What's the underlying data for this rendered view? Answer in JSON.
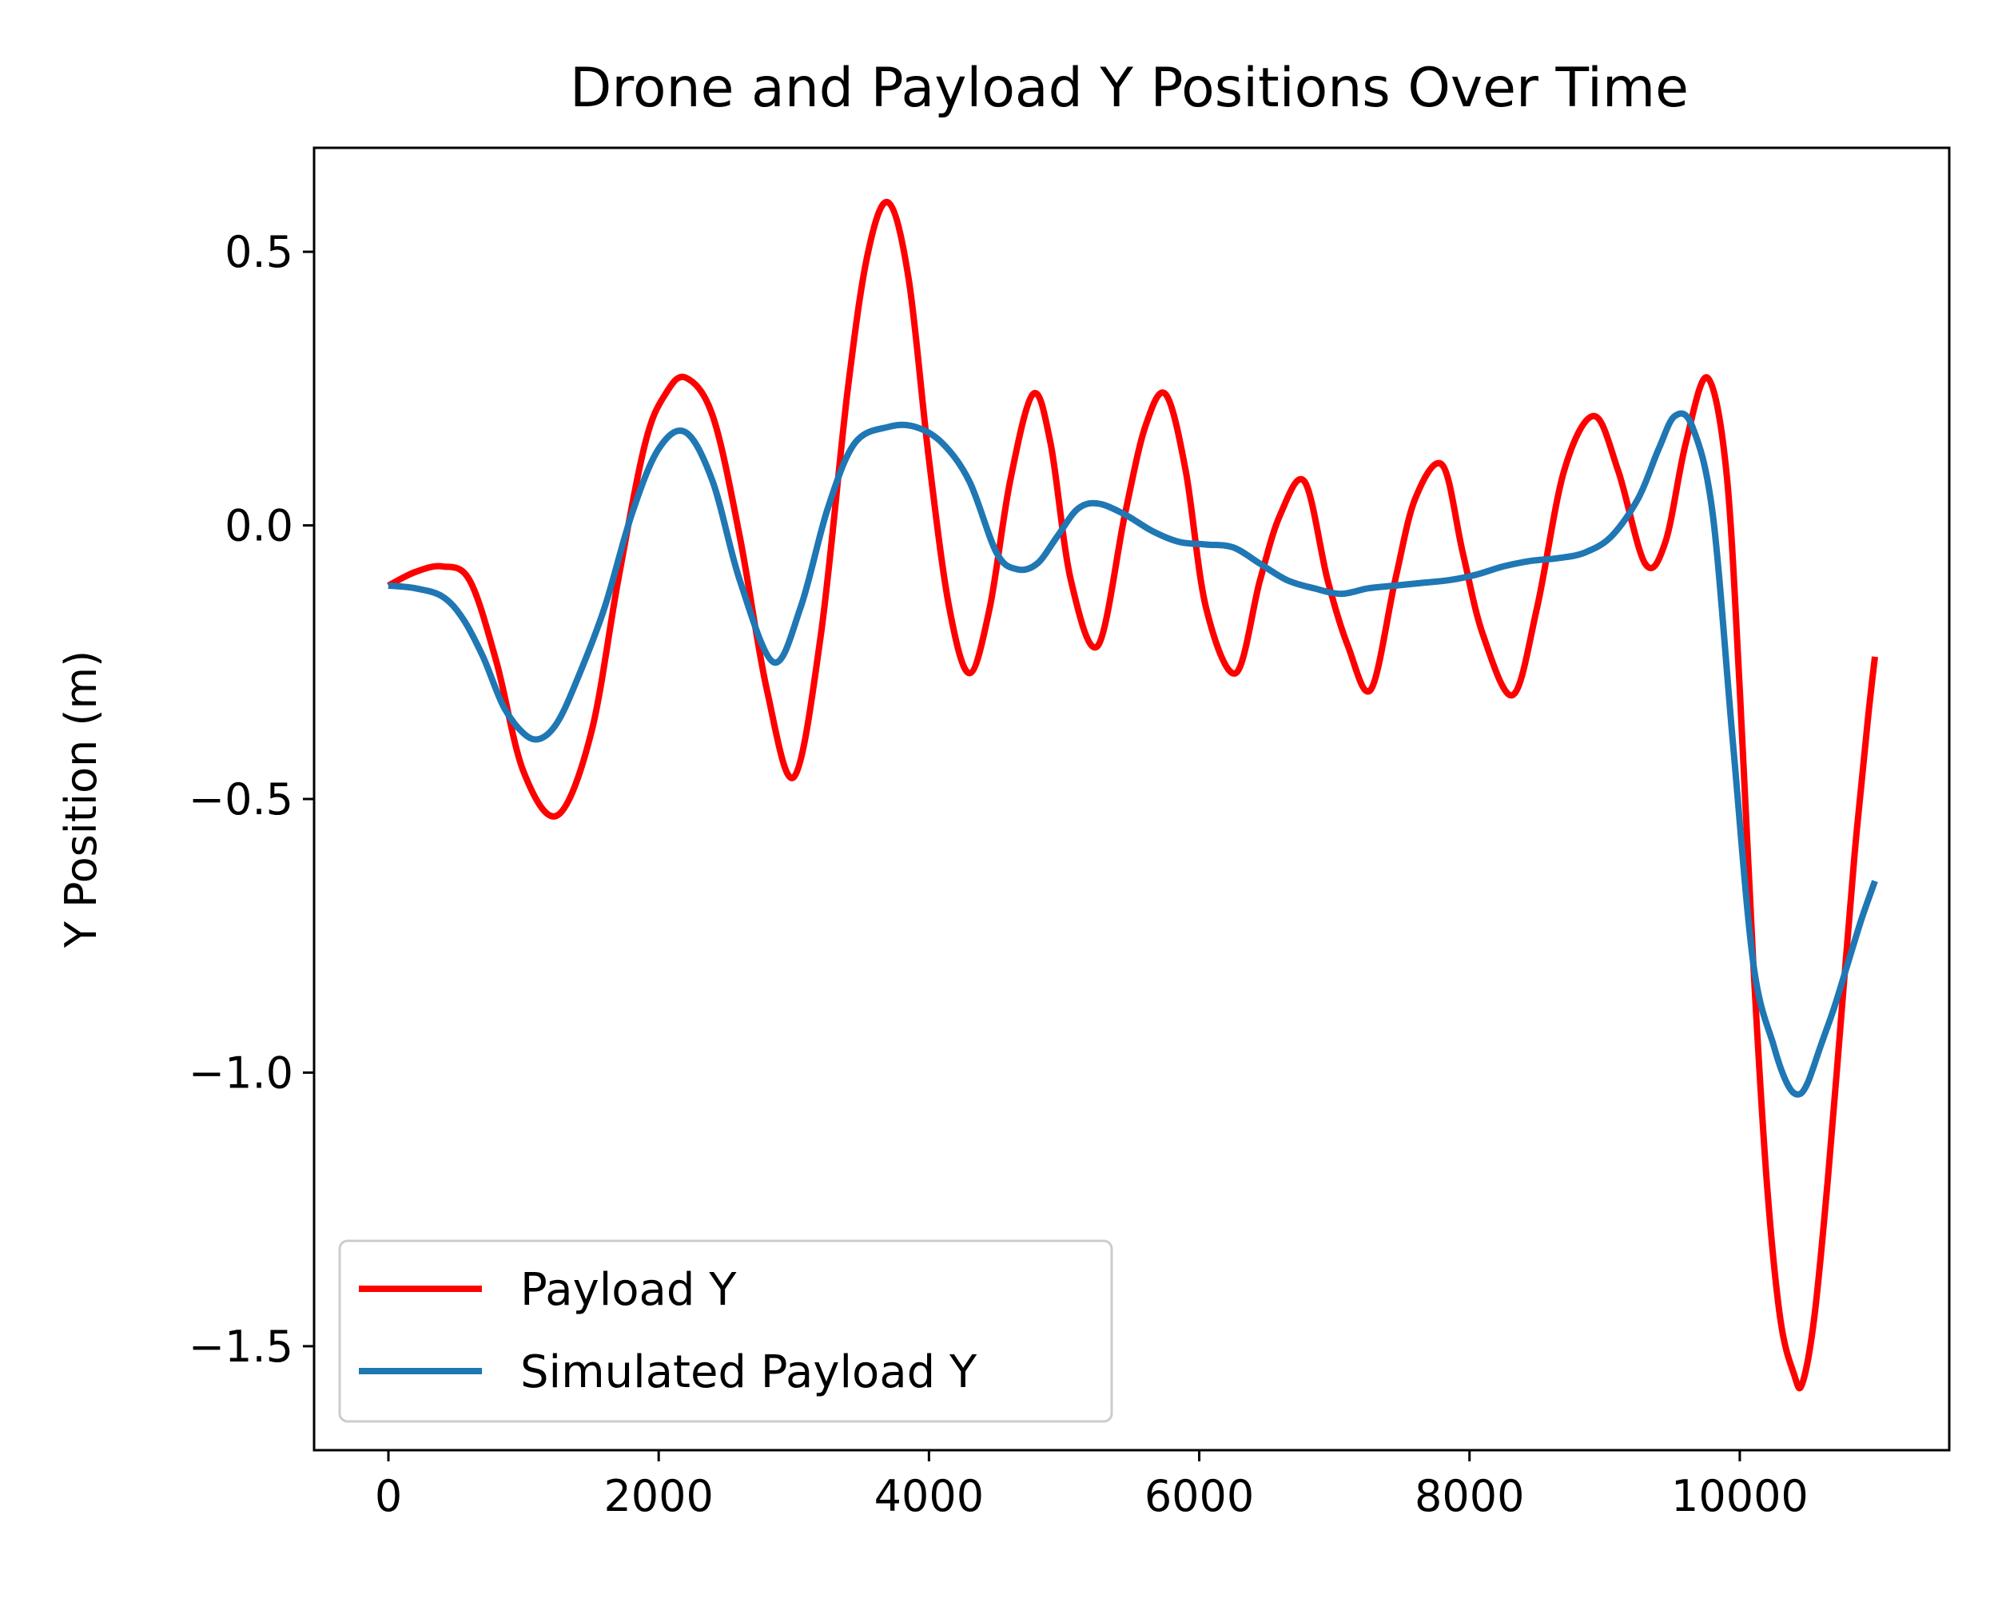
{
  "chart_data": {
    "type": "line",
    "title": "Drone and Payload Y Positions Over Time",
    "xlabel": "",
    "ylabel": "Y Position (m)",
    "xlim": [
      -550,
      11550
    ],
    "ylim": [
      -1.69,
      0.69
    ],
    "xticks": [
      0,
      2000,
      4000,
      6000,
      8000,
      10000
    ],
    "xtick_labels": [
      "0",
      "2000",
      "4000",
      "6000",
      "8000",
      "10000"
    ],
    "yticks": [
      0.5,
      0.0,
      -0.5,
      -1.0,
      -1.5
    ],
    "ytick_labels": [
      "0.5",
      "0.0",
      "−0.5",
      "−1.0",
      "−1.5"
    ],
    "grid": false,
    "legend_position": "bottom-left",
    "series": [
      {
        "name": "Payload Y",
        "color": "#ff0000",
        "x": [
          0,
          200,
          400,
          600,
          800,
          1000,
          1250,
          1500,
          1700,
          1900,
          2050,
          2200,
          2400,
          2600,
          2800,
          3000,
          3200,
          3400,
          3550,
          3700,
          3850,
          4000,
          4150,
          4300,
          4450,
          4600,
          4770,
          4900,
          5050,
          5250,
          5450,
          5600,
          5750,
          5900,
          6050,
          6270,
          6450,
          6600,
          6780,
          6950,
          7100,
          7270,
          7450,
          7600,
          7800,
          7950,
          8100,
          8320,
          8500,
          8700,
          8920,
          9100,
          9300,
          9450,
          9600,
          9760,
          9900,
          10000,
          10100,
          10200,
          10300,
          10400,
          10460,
          10550,
          10650,
          10750,
          10850,
          10950,
          11000
        ],
        "y": [
          -0.11,
          -0.085,
          -0.075,
          -0.1,
          -0.25,
          -0.45,
          -0.53,
          -0.38,
          -0.1,
          0.15,
          0.24,
          0.27,
          0.2,
          -0.02,
          -0.3,
          -0.46,
          -0.2,
          0.25,
          0.5,
          0.59,
          0.45,
          0.12,
          -0.15,
          -0.27,
          -0.15,
          0.08,
          0.24,
          0.15,
          -0.1,
          -0.22,
          0.02,
          0.18,
          0.24,
          0.1,
          -0.15,
          -0.27,
          -0.1,
          0.02,
          0.08,
          -0.1,
          -0.22,
          -0.3,
          -0.1,
          0.05,
          0.11,
          -0.05,
          -0.2,
          -0.31,
          -0.15,
          0.1,
          0.2,
          0.1,
          -0.07,
          -0.03,
          0.15,
          0.27,
          0.1,
          -0.3,
          -0.8,
          -1.2,
          -1.45,
          -1.55,
          -1.57,
          -1.45,
          -1.2,
          -0.9,
          -0.6,
          -0.35,
          -0.24
        ]
      },
      {
        "name": "Simulated Payload Y",
        "color": "#1f77b4",
        "x": [
          0,
          200,
          400,
          550,
          700,
          850,
          1000,
          1120,
          1250,
          1400,
          1600,
          1800,
          2000,
          2200,
          2400,
          2600,
          2850,
          3050,
          3250,
          3450,
          3700,
          3900,
          4100,
          4300,
          4500,
          4650,
          4800,
          4950,
          5100,
          5250,
          5450,
          5650,
          5850,
          6050,
          6250,
          6450,
          6650,
          6850,
          7050,
          7250,
          7450,
          7650,
          7850,
          8050,
          8250,
          8450,
          8650,
          8850,
          9050,
          9250,
          9400,
          9520,
          9650,
          9800,
          9950,
          10100,
          10250,
          10350,
          10430,
          10500,
          10600,
          10700,
          10800,
          10900,
          11000
        ],
        "y": [
          -0.11,
          -0.115,
          -0.13,
          -0.17,
          -0.24,
          -0.33,
          -0.38,
          -0.39,
          -0.36,
          -0.28,
          -0.15,
          0.02,
          0.14,
          0.17,
          0.08,
          -0.1,
          -0.25,
          -0.15,
          0.03,
          0.15,
          0.18,
          0.18,
          0.15,
          0.08,
          -0.05,
          -0.08,
          -0.07,
          -0.02,
          0.03,
          0.04,
          0.02,
          -0.01,
          -0.03,
          -0.035,
          -0.04,
          -0.07,
          -0.1,
          -0.115,
          -0.125,
          -0.115,
          -0.11,
          -0.105,
          -0.1,
          -0.09,
          -0.075,
          -0.065,
          -0.06,
          -0.05,
          -0.02,
          0.05,
          0.14,
          0.2,
          0.18,
          0.02,
          -0.4,
          -0.8,
          -0.95,
          -1.02,
          -1.04,
          -1.02,
          -0.95,
          -0.88,
          -0.8,
          -0.72,
          -0.65
        ]
      }
    ]
  }
}
